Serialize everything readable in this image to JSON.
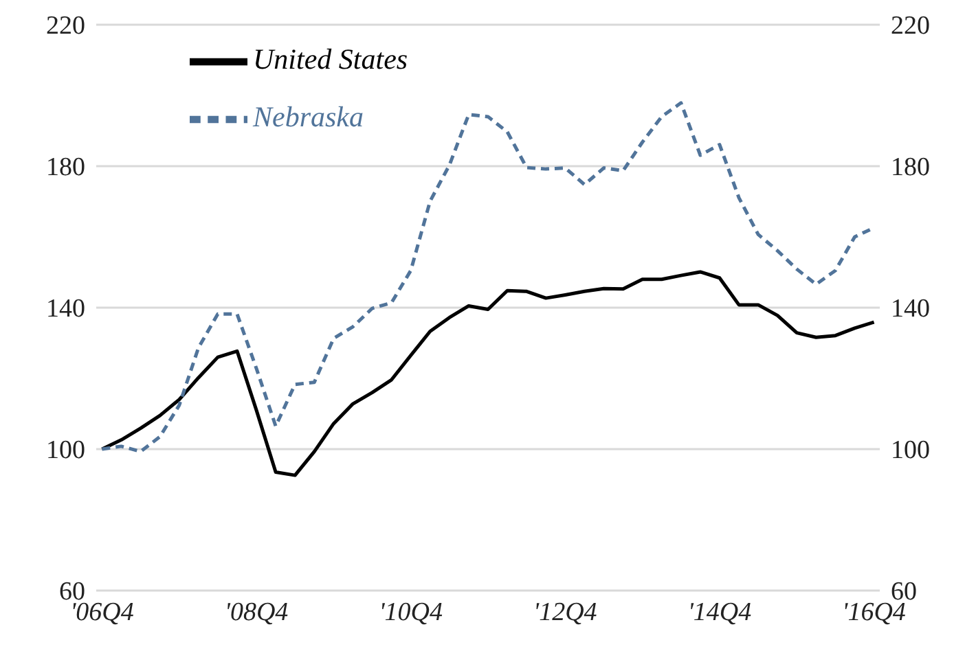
{
  "chart_data": {
    "type": "line",
    "categories": [
      "'06Q4",
      null,
      null,
      null,
      null,
      null,
      null,
      null,
      "'08Q4",
      null,
      null,
      null,
      null,
      null,
      null,
      null,
      "'10Q4",
      null,
      null,
      null,
      null,
      null,
      null,
      null,
      "'12Q4",
      null,
      null,
      null,
      null,
      null,
      null,
      null,
      "'14Q4",
      null,
      null,
      null,
      null,
      null,
      null,
      null,
      "'16Q4"
    ],
    "series": [
      {
        "name": "United States",
        "color": "#000000",
        "line_style": "solid",
        "values": [
          100,
          102.6,
          105.9,
          109.5,
          114,
          120.2,
          126,
          127.7,
          111,
          93.5,
          92.6,
          99.3,
          107.2,
          112.8,
          116,
          119.6,
          126.5,
          133.3,
          137.2,
          140.5,
          139.5,
          144.8,
          144.6,
          142.7,
          143.6,
          144.6,
          145.4,
          145.3,
          148,
          148,
          149.1,
          150.1,
          148.4,
          140.8,
          140.8,
          137.8,
          132.9,
          131.6,
          132.1,
          134.2,
          135.9
        ]
      },
      {
        "name": "Nebraska",
        "color": "#51749a",
        "line_style": "dashed",
        "values": [
          100,
          100.8,
          99.3,
          103.5,
          112.4,
          128.7,
          138.2,
          138.2,
          122.8,
          106.5,
          118.3,
          118.9,
          131.3,
          134.6,
          139.8,
          141.4,
          150.5,
          170.1,
          180.3,
          194.6,
          194,
          189.7,
          179.6,
          179.2,
          179.5,
          174.8,
          179.5,
          178.7,
          186.8,
          194,
          197.9,
          183.1,
          186.1,
          171.1,
          160.7,
          156.1,
          150.9,
          146.6,
          150.5,
          160,
          162.6
        ]
      }
    ],
    "ylim": [
      60,
      220
    ],
    "yticks": [
      60,
      100,
      140,
      180,
      220
    ],
    "y2lim": [
      60,
      220
    ],
    "y2ticks": [
      60,
      100,
      140,
      180,
      220
    ],
    "grid": "y",
    "legend": "top left",
    "marker": "none"
  }
}
